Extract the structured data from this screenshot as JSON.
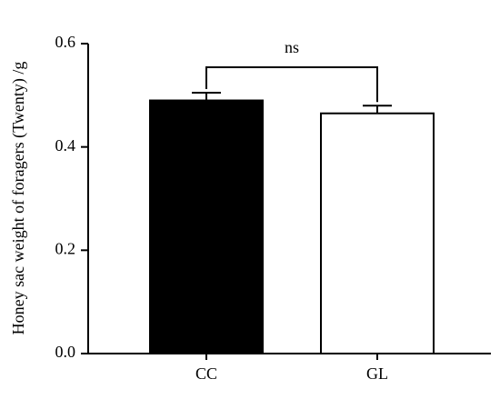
{
  "chart_data": {
    "type": "bar",
    "y_label": "Honey sac weight of foragers (Twenty) /g",
    "categories": [
      "CC",
      "GL"
    ],
    "values": [
      0.49,
      0.465
    ],
    "errors": [
      0.015,
      0.015
    ],
    "colors": [
      "#000000",
      "#ffffff"
    ],
    "ylim": [
      0,
      0.6
    ],
    "yticks": [
      {
        "value": 0,
        "label": "0.0"
      },
      0.2,
      0.4,
      0.6
    ],
    "annotation": "ns"
  }
}
